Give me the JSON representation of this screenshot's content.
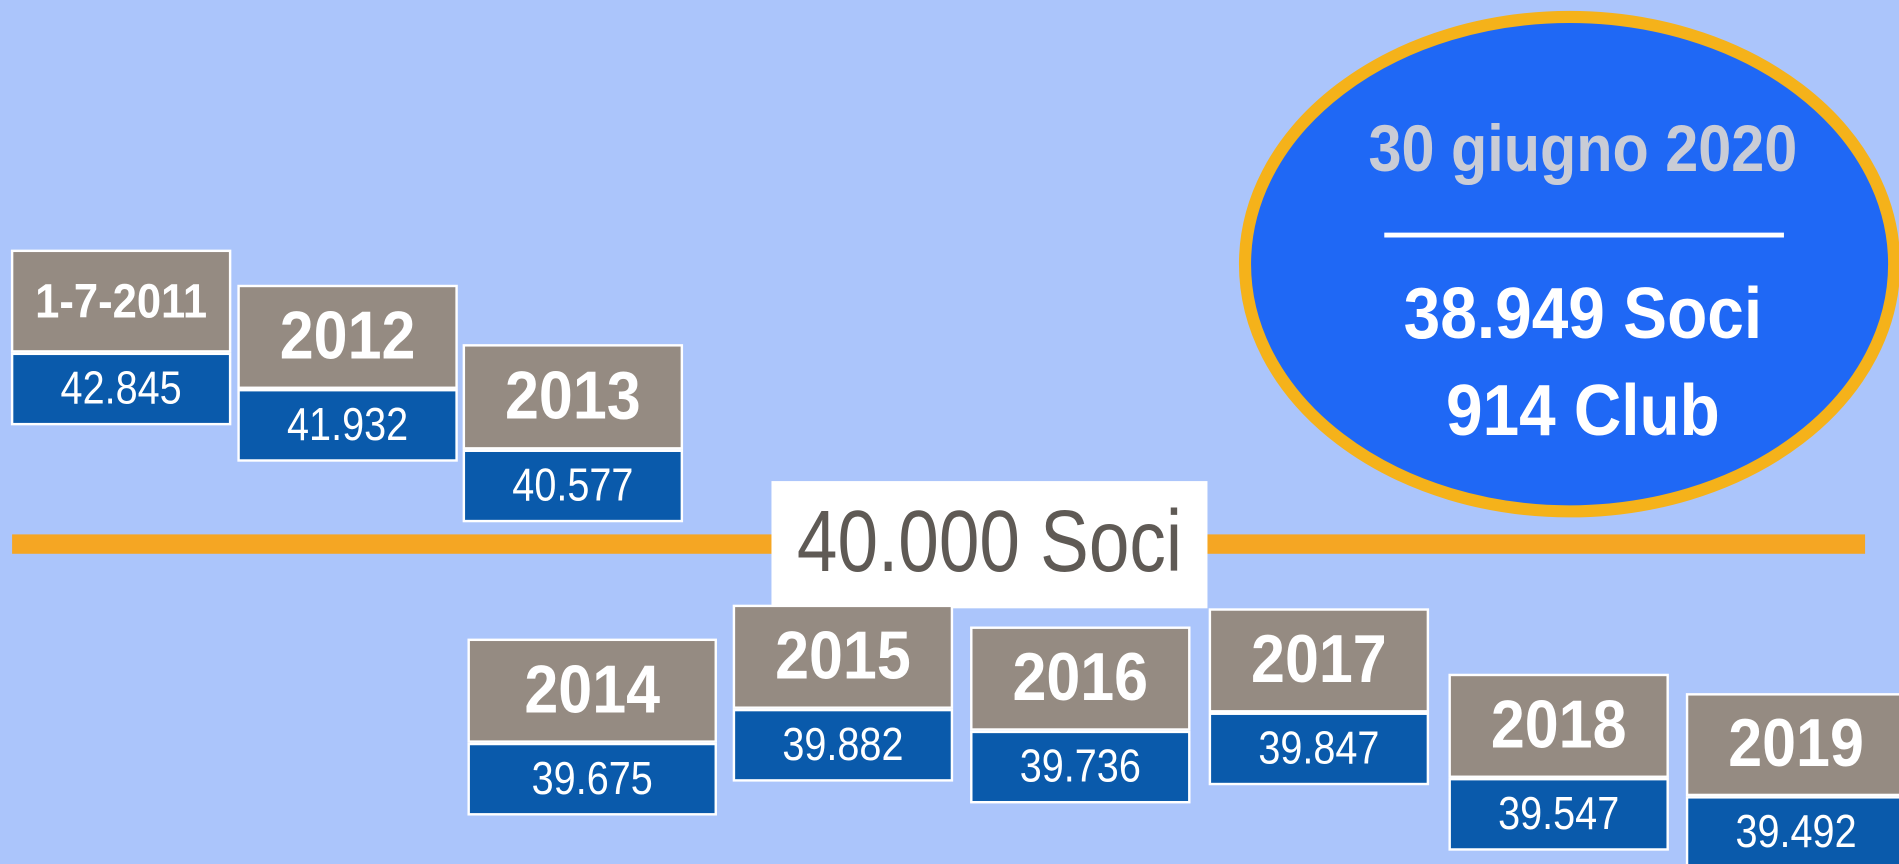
{
  "threshold": "40.000 Soci",
  "summary": {
    "date": "30 giugno 2020",
    "members": "38.949 Soci",
    "clubs": "914 Club"
  },
  "years": [
    {
      "label": "1-7-2011",
      "value": "42.845"
    },
    {
      "label": "2012",
      "value": "41.932"
    },
    {
      "label": "2013",
      "value": "40.577"
    },
    {
      "label": "2014",
      "value": "39.675"
    },
    {
      "label": "2015",
      "value": "39.882"
    },
    {
      "label": "2016",
      "value": "39.736"
    },
    {
      "label": "2017",
      "value": "39.847"
    },
    {
      "label": "2018",
      "value": "39.547"
    },
    {
      "label": "2019",
      "value": "39.492"
    }
  ]
}
